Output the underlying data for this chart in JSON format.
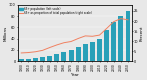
{
  "years": [
    1900,
    1910,
    1920,
    1930,
    1940,
    1950,
    1960,
    1970,
    1980,
    1990,
    2000,
    2010,
    2020,
    2030,
    2040,
    2050
  ],
  "population_millions": [
    3.1,
    3.9,
    4.9,
    6.6,
    9.0,
    12.3,
    16.6,
    20.1,
    25.5,
    31.2,
    35.0,
    40.2,
    54.8,
    69.4,
    79.7,
    88.5
  ],
  "proportion_percent": [
    4.1,
    4.3,
    4.7,
    5.4,
    6.8,
    8.1,
    9.2,
    9.8,
    11.3,
    12.6,
    12.4,
    13.0,
    16.3,
    19.7,
    21.2,
    20.6
  ],
  "bar_color": "#29a0b8",
  "line_color": "#f08060",
  "ylabel_left": "Millions",
  "ylabel_right": "Percent",
  "xlabel": "Year",
  "ylim_left": [
    0,
    100
  ],
  "ylim_right": [
    0,
    28
  ],
  "yticks_left": [
    0,
    20,
    40,
    60,
    80,
    100
  ],
  "yticks_right": [
    0,
    5,
    10,
    15,
    20,
    25
  ],
  "legend_bar": "65+ population (left scale)",
  "legend_line": "65+ as proportion of total population (right scale)",
  "background_color": "#e8e8e8"
}
